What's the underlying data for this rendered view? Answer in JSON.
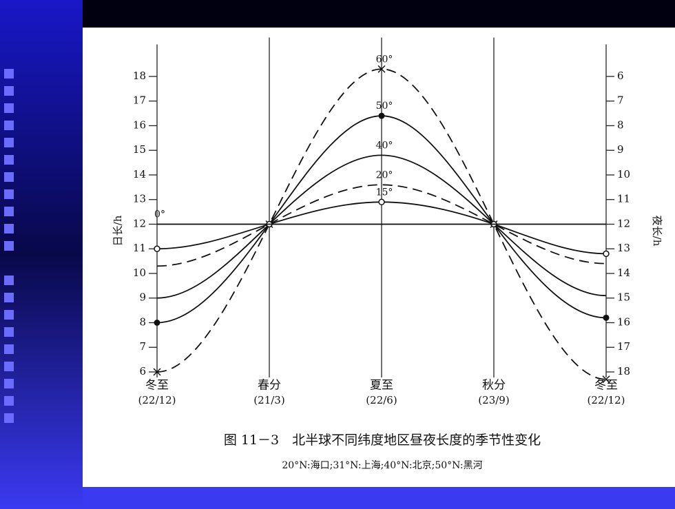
{
  "chart_data": {
    "type": "line",
    "title": "图 11－3　北半球不同纬度地区昼夜长度的季节性变化",
    "subtitle": "20°N:海口;31°N:上海;40°N:北京;50°N:黑河",
    "ylabel": "日长/h",
    "y2label": "夜长/h",
    "categories": [
      "冬至",
      "春分",
      "夏至",
      "秋分",
      "冬至"
    ],
    "dates": [
      "(22/12)",
      "(21/3)",
      "(22/6)",
      "(23/9)",
      "(22/12)"
    ],
    "ylim": [
      6,
      19.3
    ],
    "yticks": [
      6,
      7,
      8,
      9,
      10,
      11,
      12,
      13,
      14,
      15,
      16,
      17,
      18
    ],
    "y2lim": [
      18,
      4.7
    ],
    "y2ticks": [
      6,
      7,
      8,
      9,
      10,
      11,
      12,
      13,
      14,
      15,
      16,
      17,
      18
    ],
    "series": [
      {
        "name": "60°",
        "color": "#111111",
        "marker": "x",
        "dash": true,
        "values": [
          6.0,
          12,
          18.3,
          12,
          5.7
        ]
      },
      {
        "name": "50°",
        "color": "#111111",
        "marker": "dot",
        "dash": false,
        "values": [
          8.0,
          12,
          16.4,
          12,
          8.2
        ]
      },
      {
        "name": "40°",
        "color": "#111111",
        "marker": "none",
        "dash": false,
        "values": [
          9.0,
          12,
          14.8,
          12,
          9.1
        ]
      },
      {
        "name": "20°",
        "color": "#111111",
        "marker": "none",
        "dash": true,
        "values": [
          10.3,
          12,
          13.6,
          12,
          10.4
        ]
      },
      {
        "name": "15°",
        "color": "#111111",
        "marker": "circle",
        "dash": false,
        "values": [
          11.0,
          12,
          12.9,
          12,
          10.8
        ]
      },
      {
        "name": "0°",
        "color": "#111111",
        "marker": "none",
        "dash": false,
        "values": [
          12,
          12,
          12,
          12,
          12
        ]
      }
    ]
  }
}
